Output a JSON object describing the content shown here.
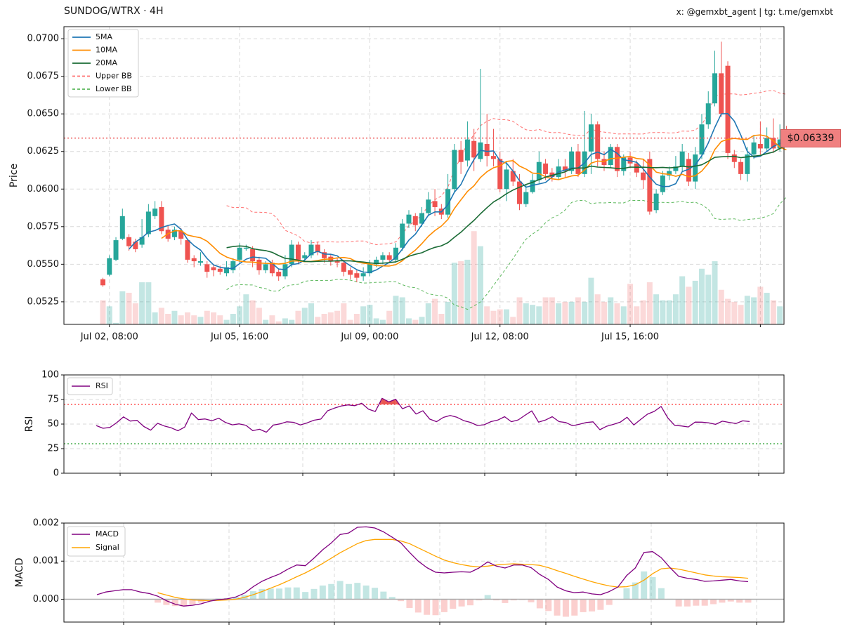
{
  "header": {
    "title": "SUNDOG/WTRX · 4H",
    "credit": "x: @gemxbt_agent | tg: t.me/gemxbt"
  },
  "price_tag": "$0.06339",
  "colors": {
    "up": "#26a69a",
    "down": "#ef5350",
    "ma5": "#1f77b4",
    "ma10": "#ff8c00",
    "ma20": "#1a6b35",
    "bb_upper": "#ff7070",
    "bb_lower": "#5cb85c",
    "rsi": "#800080",
    "macd": "#800080",
    "signal": "#ffa500"
  },
  "chart_data": [
    {
      "type": "candlestick",
      "title": "SUNDOG/WTRX · 4H",
      "ylabel": "Price",
      "ylim": [
        0.051,
        0.0708
      ],
      "yticks": [
        0.0525,
        0.055,
        0.0575,
        0.06,
        0.0625,
        0.065,
        0.0675,
        0.07
      ],
      "ytick_labels": [
        "0.0525",
        "0.0550",
        "0.0575",
        "0.0600",
        "0.0625",
        "0.0650",
        "0.0675",
        "0.0700"
      ],
      "xtick_labels": [
        "Jul 02, 08:00",
        "Jul 05, 16:00",
        "Jul 09, 00:00",
        "Jul 12, 08:00",
        "Jul 15, 16:00"
      ],
      "xtick_index": [
        1,
        21,
        41,
        61,
        81
      ],
      "current_price": 0.06339,
      "legend": [
        "5MA",
        "10MA",
        "20MA",
        "Upper BB",
        "Lower BB"
      ],
      "legend_position": "top-left",
      "grid": true,
      "candles": [
        [
          0.054,
          0.0536,
          0.0541,
          0.0535
        ],
        [
          0.0543,
          0.0554,
          0.0556,
          0.0542
        ],
        [
          0.0553,
          0.0566,
          0.0568,
          0.0552
        ],
        [
          0.0567,
          0.0582,
          0.0587,
          0.0566
        ],
        [
          0.0568,
          0.0562,
          0.057,
          0.0559
        ],
        [
          0.0565,
          0.056,
          0.0567,
          0.0558
        ],
        [
          0.0563,
          0.0568,
          0.058,
          0.0561
        ],
        [
          0.057,
          0.0585,
          0.059,
          0.0568
        ],
        [
          0.0582,
          0.0587,
          0.0592,
          0.058
        ],
        [
          0.0588,
          0.0572,
          0.0592,
          0.057
        ],
        [
          0.0573,
          0.0567,
          0.0576,
          0.0565
        ],
        [
          0.0568,
          0.0573,
          0.0575,
          0.0566
        ],
        [
          0.0572,
          0.0567,
          0.0574,
          0.0563
        ],
        [
          0.0566,
          0.0553,
          0.0567,
          0.0551
        ],
        [
          0.0554,
          0.0552,
          0.0556,
          0.0548
        ],
        [
          0.0551,
          0.0552,
          0.0558,
          0.0549
        ],
        [
          0.055,
          0.0545,
          0.0552,
          0.0541
        ],
        [
          0.0548,
          0.0546,
          0.055,
          0.0542
        ],
        [
          0.0547,
          0.0545,
          0.0549,
          0.0543
        ],
        [
          0.0544,
          0.0548,
          0.0552,
          0.0542
        ],
        [
          0.0546,
          0.0552,
          0.0554,
          0.0544
        ],
        [
          0.0553,
          0.0561,
          0.0564,
          0.0551
        ],
        [
          0.0561,
          0.0561,
          0.0563,
          0.0559
        ],
        [
          0.056,
          0.0552,
          0.0562,
          0.0548
        ],
        [
          0.0553,
          0.0546,
          0.0555,
          0.0543
        ],
        [
          0.0546,
          0.055,
          0.0552,
          0.0544
        ],
        [
          0.0551,
          0.0544,
          0.0553,
          0.0542
        ],
        [
          0.0545,
          0.0542,
          0.0547,
          0.0539
        ],
        [
          0.0542,
          0.055,
          0.0556,
          0.054
        ],
        [
          0.055,
          0.0563,
          0.0566,
          0.0548
        ],
        [
          0.0563,
          0.0553,
          0.0565,
          0.055
        ],
        [
          0.0554,
          0.0556,
          0.0558,
          0.0552
        ],
        [
          0.0556,
          0.0563,
          0.0566,
          0.0554
        ],
        [
          0.0563,
          0.0558,
          0.0565,
          0.0556
        ],
        [
          0.0558,
          0.0554,
          0.056,
          0.0551
        ],
        [
          0.0555,
          0.0552,
          0.0557,
          0.0549
        ],
        [
          0.0552,
          0.0551,
          0.0554,
          0.0548
        ],
        [
          0.0551,
          0.0545,
          0.0553,
          0.0542
        ],
        [
          0.0546,
          0.0543,
          0.0548,
          0.054
        ],
        [
          0.0544,
          0.0541,
          0.0546,
          0.0538
        ],
        [
          0.0542,
          0.0544,
          0.0548,
          0.0539
        ],
        [
          0.0544,
          0.055,
          0.0553,
          0.0542
        ],
        [
          0.055,
          0.0553,
          0.0555,
          0.0548
        ],
        [
          0.0553,
          0.0556,
          0.0558,
          0.055
        ],
        [
          0.0556,
          0.0553,
          0.0558,
          0.0551
        ],
        [
          0.0553,
          0.0561,
          0.0564,
          0.0551
        ],
        [
          0.0561,
          0.0577,
          0.058,
          0.0559
        ],
        [
          0.0577,
          0.0583,
          0.0586,
          0.0574
        ],
        [
          0.0582,
          0.0576,
          0.0584,
          0.0572
        ],
        [
          0.0577,
          0.0584,
          0.0588,
          0.0575
        ],
        [
          0.0584,
          0.0593,
          0.0598,
          0.0582
        ],
        [
          0.0592,
          0.0588,
          0.06,
          0.0582
        ],
        [
          0.0587,
          0.0583,
          0.059,
          0.058
        ],
        [
          0.0583,
          0.06,
          0.061,
          0.0581
        ],
        [
          0.06,
          0.0626,
          0.063,
          0.0598
        ],
        [
          0.0626,
          0.0618,
          0.0632,
          0.061
        ],
        [
          0.0619,
          0.0633,
          0.0645,
          0.0615
        ],
        [
          0.0632,
          0.0621,
          0.064,
          0.0612
        ],
        [
          0.062,
          0.0631,
          0.068,
          0.0618
        ],
        [
          0.063,
          0.0622,
          0.065,
          0.0615
        ],
        [
          0.0622,
          0.062,
          0.064,
          0.0615
        ],
        [
          0.062,
          0.06,
          0.0625,
          0.0598
        ],
        [
          0.06,
          0.0613,
          0.0618,
          0.0592
        ],
        [
          0.0612,
          0.0605,
          0.062,
          0.0602
        ],
        [
          0.0605,
          0.059,
          0.061,
          0.0586
        ],
        [
          0.059,
          0.0598,
          0.0603,
          0.0588
        ],
        [
          0.0598,
          0.0606,
          0.061,
          0.0597
        ],
        [
          0.0606,
          0.0618,
          0.0625,
          0.0604
        ],
        [
          0.0617,
          0.061,
          0.062,
          0.0606
        ],
        [
          0.0611,
          0.0608,
          0.0614,
          0.0605
        ],
        [
          0.0608,
          0.0615,
          0.062,
          0.0606
        ],
        [
          0.0615,
          0.0612,
          0.062,
          0.0608
        ],
        [
          0.0612,
          0.0625,
          0.0628,
          0.061
        ],
        [
          0.0625,
          0.061,
          0.063,
          0.0608
        ],
        [
          0.061,
          0.0625,
          0.0652,
          0.0608
        ],
        [
          0.0625,
          0.0643,
          0.065,
          0.061
        ],
        [
          0.0643,
          0.062,
          0.0645,
          0.0615
        ],
        [
          0.062,
          0.0616,
          0.0625,
          0.0612
        ],
        [
          0.0616,
          0.0628,
          0.063,
          0.0614
        ],
        [
          0.0628,
          0.0612,
          0.063,
          0.0608
        ],
        [
          0.0612,
          0.0621,
          0.0623,
          0.0609
        ],
        [
          0.0621,
          0.0617,
          0.0625,
          0.0614
        ],
        [
          0.0617,
          0.0611,
          0.0619,
          0.0608
        ],
        [
          0.0611,
          0.0606,
          0.062,
          0.06
        ],
        [
          0.062,
          0.0585,
          0.0625,
          0.0583
        ],
        [
          0.0586,
          0.0597,
          0.06,
          0.0584
        ],
        [
          0.0598,
          0.0609,
          0.0612,
          0.0596
        ],
        [
          0.0609,
          0.0612,
          0.0615,
          0.0606
        ],
        [
          0.0612,
          0.0615,
          0.0622,
          0.061
        ],
        [
          0.0615,
          0.0625,
          0.063,
          0.0612
        ],
        [
          0.062,
          0.0605,
          0.0624,
          0.0602
        ],
        [
          0.0605,
          0.0623,
          0.0628,
          0.06
        ],
        [
          0.0623,
          0.0643,
          0.065,
          0.062
        ],
        [
          0.0643,
          0.0657,
          0.0665,
          0.064
        ],
        [
          0.0657,
          0.0677,
          0.0692,
          0.0655
        ],
        [
          0.0677,
          0.065,
          0.0698,
          0.0648
        ],
        [
          0.0682,
          0.0624,
          0.0685,
          0.062
        ],
        [
          0.0623,
          0.0618,
          0.0626,
          0.0614
        ],
        [
          0.0618,
          0.061,
          0.062,
          0.0606
        ],
        [
          0.061,
          0.0623,
          0.0628,
          0.0605
        ],
        [
          0.0623,
          0.0631,
          0.0636,
          0.062
        ],
        [
          0.063,
          0.0627,
          0.0645,
          0.0623
        ],
        [
          0.0627,
          0.0634,
          0.0641,
          0.0625
        ],
        [
          0.0634,
          0.0627,
          0.0647,
          0.0624
        ],
        [
          0.0627,
          0.0633,
          0.0643,
          0.0625
        ],
        [
          0.0637,
          0.0634,
          0.0642,
          0.0628
        ]
      ],
      "volume_max": 0.0572,
      "volume": [
        0.0526,
        0.0522,
        0.0511,
        0.0532,
        0.0531,
        0.0524,
        0.0538,
        0.0538,
        0.0518,
        0.0521,
        0.0517,
        0.0519,
        0.0516,
        0.0518,
        0.0516,
        0.0515,
        0.0519,
        0.0518,
        0.0516,
        0.0513,
        0.0517,
        0.0522,
        0.053,
        0.0526,
        0.0521,
        0.0513,
        0.0516,
        0.0512,
        0.0514,
        0.0513,
        0.0519,
        0.0521,
        0.0524,
        0.0515,
        0.0517,
        0.0518,
        0.0519,
        0.0524,
        0.0513,
        0.0517,
        0.0522,
        0.0523,
        0.0514,
        0.0513,
        0.0519,
        0.0529,
        0.0528,
        0.0514,
        0.0513,
        0.0515,
        0.0524,
        0.0527,
        0.0517,
        0.0525,
        0.0551,
        0.0552,
        0.0553,
        0.0572,
        0.0562,
        0.0522,
        0.0519,
        0.052,
        0.052,
        0.0515,
        0.0528,
        0.0524,
        0.0523,
        0.0522,
        0.0528,
        0.0528,
        0.0524,
        0.0525,
        0.0525,
        0.0528,
        0.0525,
        0.0541,
        0.053,
        0.0525,
        0.0528,
        0.0524,
        0.0522,
        0.0537,
        0.0522,
        0.0526,
        0.0538,
        0.053,
        0.0526,
        0.0526,
        0.053,
        0.0542,
        0.0535,
        0.0539,
        0.0547,
        0.0543,
        0.0552,
        0.0533,
        0.0527,
        0.0525,
        0.0523,
        0.0529,
        0.0528,
        0.0535,
        0.0531,
        0.0526,
        0.0522
      ]
    },
    {
      "type": "line",
      "ylabel": "RSI",
      "ylim": [
        0,
        100
      ],
      "yticks": [
        0,
        25,
        50,
        75,
        100
      ],
      "overbought": 70,
      "oversold": 30,
      "legend": [
        "RSI"
      ],
      "legend_position": "top-left",
      "grid": true,
      "series": [
        {
          "name": "RSI",
          "values": [
            48.5,
            45.7,
            46.6,
            51.4,
            57.3,
            53.1,
            53.8,
            47.5,
            43.8,
            50.8,
            48.1,
            46.2,
            43.2,
            46.9,
            61.3,
            54.6,
            55.2,
            53.4,
            55.9,
            51.6,
            49.2,
            50.2,
            48.8,
            43.3,
            44.7,
            41.7,
            48.9,
            50.2,
            52.3,
            51.8,
            49.1,
            51.3,
            53.9,
            55.1,
            63.6,
            66.2,
            68.4,
            69.5,
            68.7,
            71.2,
            65.2,
            62.8,
            76.2,
            72.6,
            75.3,
            65.6,
            68.5,
            60.2,
            63.5,
            55.1,
            52.4,
            56.8,
            58.7,
            56.9,
            53.5,
            51.7,
            48.6,
            49.3,
            52.5,
            54.1,
            57.5,
            52.4,
            54.2,
            58.9,
            63.4,
            51.9,
            54.1,
            57.5,
            52.5,
            51.6,
            48.3,
            49.8,
            51.6,
            52.3,
            44.3,
            47.8,
            49.7,
            51.9,
            56.9,
            49.1,
            54.7,
            60.1,
            62.9,
            67.9,
            56.1,
            48.7,
            48.1,
            47.1,
            52.0,
            51.9,
            51.2,
            49.7,
            52.9,
            51.7,
            50.6,
            53.3,
            52.6
          ]
        }
      ]
    },
    {
      "type": "line",
      "ylabel": "MACD",
      "ylim": [
        -0.0006,
        0.002
      ],
      "yticks": [
        0.0,
        0.001,
        0.002
      ],
      "ytick_labels": [
        "0.000",
        "0.001",
        "0.002"
      ],
      "legend": [
        "MACD",
        "Signal"
      ],
      "legend_position": "top-left",
      "grid": true,
      "series": [
        {
          "name": "MACD",
          "values": [
            0.00012,
            0.00019,
            0.00022,
            0.00025,
            0.00025,
            0.00019,
            0.00015,
            8e-05,
            -4e-05,
            -0.00013,
            -0.00018,
            -0.00016,
            -0.00012,
            -5e-05,
            -1e-05,
            1e-05,
            6e-05,
            0.00016,
            0.00033,
            0.00047,
            0.00057,
            0.00066,
            0.00079,
            0.0009,
            0.00088,
            0.00108,
            0.0013,
            0.00148,
            0.0017,
            0.00174,
            0.00189,
            0.0019,
            0.00187,
            0.00177,
            0.00163,
            0.00148,
            0.00123,
            0.001,
            0.00083,
            0.00071,
            0.00069,
            0.00071,
            0.00072,
            0.00071,
            0.00082,
            0.00098,
            0.00087,
            0.00082,
            0.0009,
            0.0009,
            0.00083,
            0.00065,
            0.00052,
            0.00032,
            0.00022,
            0.00017,
            0.00019,
            0.00014,
            0.00012,
            0.0002,
            0.00032,
            0.00062,
            0.00082,
            0.00123,
            0.00125,
            0.00109,
            0.00083,
            0.0006,
            0.00055,
            0.00052,
            0.00047,
            0.00048,
            0.0005,
            0.00052,
            0.00048,
            0.00046
          ]
        },
        {
          "name": "Signal",
          "values": [
            null,
            null,
            null,
            null,
            null,
            null,
            null,
            0.00017,
            0.00011,
            5e-05,
            1e-05,
            -2e-05,
            -3e-05,
            -4e-05,
            -3e-05,
            -2e-05,
            0.0,
            5e-05,
            0.00012,
            0.0002,
            0.00029,
            0.00038,
            0.00048,
            0.00059,
            0.00069,
            0.00081,
            0.00094,
            0.00108,
            0.00122,
            0.00134,
            0.00146,
            0.00154,
            0.00157,
            0.00157,
            0.00157,
            0.00153,
            0.00146,
            0.00135,
            0.00124,
            0.00113,
            0.00103,
            0.00096,
            0.00091,
            0.00087,
            0.00085,
            0.00087,
            0.0009,
            0.00092,
            0.00093,
            0.00092,
            0.00091,
            0.00089,
            0.00083,
            0.00075,
            0.00068,
            0.0006,
            0.00053,
            0.00046,
            0.0004,
            0.00035,
            0.00032,
            0.00033,
            0.00038,
            0.0005,
            0.00067,
            0.0008,
            0.00082,
            0.00079,
            0.00074,
            0.00069,
            0.00064,
            0.00061,
            0.00059,
            0.00058,
            0.00057,
            0.00055
          ]
        }
      ],
      "histogram": [
        null,
        null,
        null,
        null,
        null,
        null,
        null,
        -9e-05,
        -0.00015,
        -0.00018,
        -0.00019,
        -0.00014,
        -9e-05,
        -1e-05,
        2e-05,
        3e-05,
        6e-05,
        0.00011,
        0.00021,
        0.00027,
        0.00028,
        0.00028,
        0.00031,
        0.00031,
        0.00019,
        0.00027,
        0.00036,
        0.0004,
        0.00048,
        0.0004,
        0.00043,
        0.00036,
        0.0003,
        0.0002,
        6e-05,
        -5e-05,
        -0.00023,
        -0.00035,
        -0.00041,
        -0.00042,
        -0.00034,
        -0.00025,
        -0.00019,
        -0.00016,
        -3e-05,
        0.00011,
        -3e-05,
        -0.0001,
        -3e-05,
        -2e-05,
        -8e-05,
        -0.00024,
        -0.00031,
        -0.00043,
        -0.00046,
        -0.00043,
        -0.00034,
        -0.00032,
        -0.00028,
        -0.00015,
        0.0,
        0.00029,
        0.00044,
        0.00073,
        0.00058,
        0.00029,
        1e-05,
        -0.00019,
        -0.00019,
        -0.00017,
        -0.00017,
        -0.00013,
        -9e-05,
        -6e-05,
        -9e-05,
        -9e-05
      ]
    }
  ]
}
